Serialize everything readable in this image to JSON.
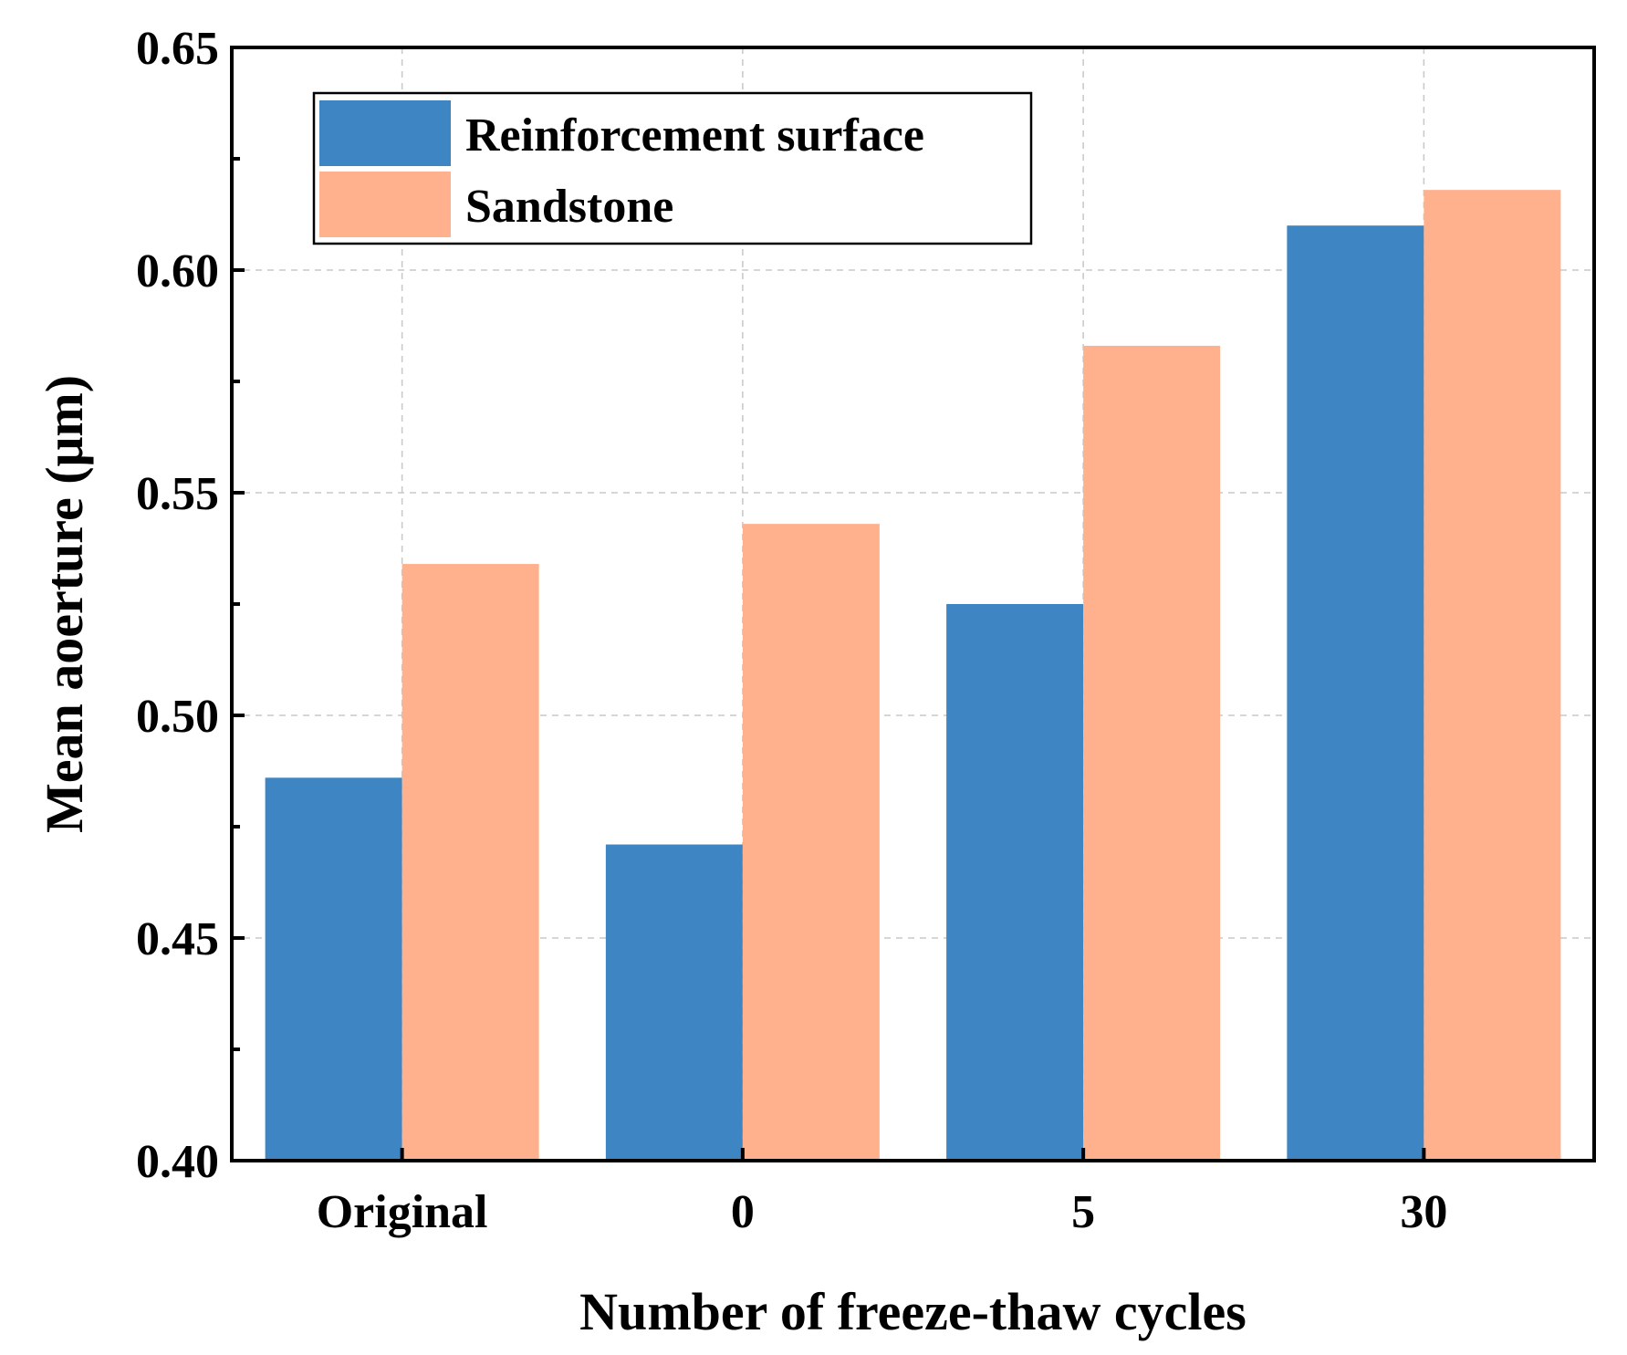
{
  "chart_data": {
    "type": "bar",
    "title": "",
    "xlabel": "Number of freeze-thaw cycles",
    "ylabel": "Mean aoerture (μm)",
    "categories": [
      "Original",
      "0",
      "5",
      "30"
    ],
    "series": [
      {
        "name": "Reinforcement surface",
        "color": "#3D85C3",
        "values": [
          0.486,
          0.471,
          0.525,
          0.61
        ]
      },
      {
        "name": "Sandstone",
        "color": "#FFB08C",
        "values": [
          0.534,
          0.543,
          0.583,
          0.618
        ]
      }
    ],
    "ylim": [
      0.4,
      0.65
    ],
    "yticks": [
      "0.40",
      "0.45",
      "0.50",
      "0.55",
      "0.60",
      "0.65"
    ],
    "grid": true,
    "legend_position": "top-left"
  }
}
